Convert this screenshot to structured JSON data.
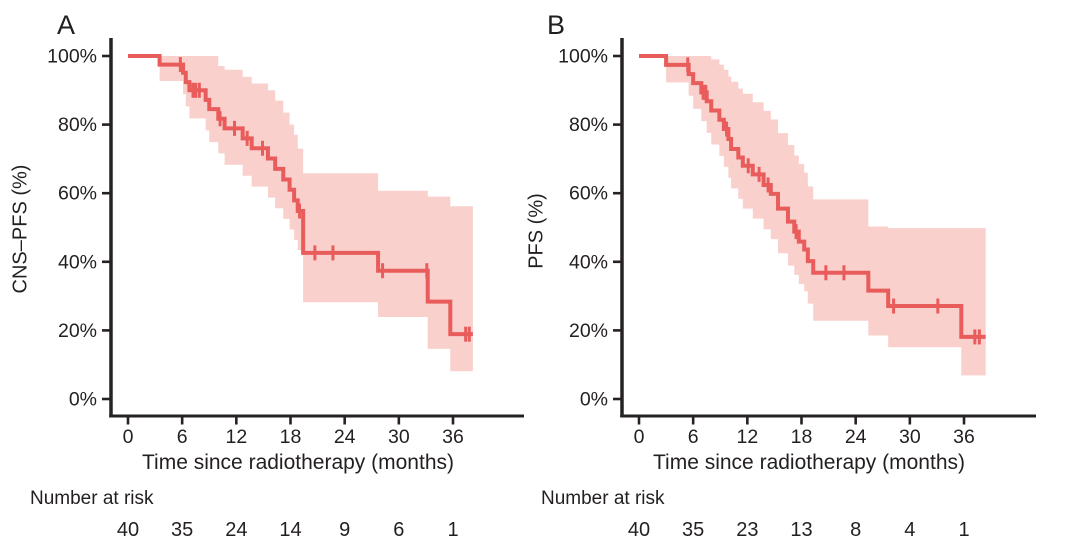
{
  "colors": {
    "line": "#e95c5c",
    "band": "#f9d0cb",
    "axis": "#262223",
    "text": "#231f20",
    "background": "#ffffff"
  },
  "chart_data": [
    {
      "type": "line",
      "subtype": "kaplan-meier-step-with-confidence-band",
      "title": "A",
      "ylabel": "CNS–PFS (%)",
      "xlabel": "Time since radiotherapy (months)",
      "xlim": [
        0,
        38.2
      ],
      "ylim": [
        0,
        100
      ],
      "grid": "off",
      "legend": "none",
      "x_ticks": [
        0,
        6,
        12,
        18,
        24,
        30,
        36
      ],
      "y_ticks": [
        {
          "pct": 100,
          "label": "100%"
        },
        {
          "pct": 80,
          "label": "80%"
        },
        {
          "pct": 60,
          "label": "60%"
        },
        {
          "pct": 40,
          "label": "40%"
        },
        {
          "pct": 20,
          "label": "20%"
        },
        {
          "pct": 0,
          "label": "0%"
        }
      ],
      "line_color": "#e95c5c",
      "band_color": "#f9d0cb",
      "steps_format": [
        "time_months",
        "survival_pct",
        "ci_upper_pct",
        "ci_lower_pct"
      ],
      "steps": [
        [
          0,
          100,
          100,
          100
        ],
        [
          3.5,
          97.5,
          100,
          92.7
        ],
        [
          6.1,
          95.1,
          100,
          88.9
        ],
        [
          6.4,
          92.4,
          100,
          85.3
        ],
        [
          6.8,
          90.0,
          100,
          81.8
        ],
        [
          8.6,
          87.2,
          100,
          78.3
        ],
        [
          9.0,
          84.5,
          100,
          74.9
        ],
        [
          10.0,
          81.7,
          97.1,
          71.6
        ],
        [
          10.7,
          78.9,
          96.0,
          68.3
        ],
        [
          12.7,
          76.0,
          93.9,
          65.1
        ],
        [
          13.7,
          73.1,
          92.0,
          61.9
        ],
        [
          15.5,
          70.1,
          90.0,
          58.7
        ],
        [
          16.3,
          67.1,
          87.0,
          55.6
        ],
        [
          17.2,
          64.0,
          83.5,
          52.5
        ],
        [
          17.9,
          61.0,
          80.0,
          49.4
        ],
        [
          18.4,
          57.9,
          77.0,
          46.4
        ],
        [
          18.8,
          54.8,
          73.0,
          43.4
        ],
        [
          19.4,
          42.6,
          65.8,
          28.2
        ],
        [
          27.7,
          37.4,
          60.7,
          23.9
        ],
        [
          33.2,
          28.4,
          59.0,
          14.6
        ],
        [
          35.7,
          18.9,
          56.2,
          8.1
        ]
      ],
      "end_time": 38.2,
      "censors_format": [
        "time_months",
        "survival_pct"
      ],
      "censors": [
        [
          5.8,
          97.5
        ],
        [
          7.2,
          90.0
        ],
        [
          7.5,
          90.0
        ],
        [
          7.9,
          90.0
        ],
        [
          10.2,
          81.7
        ],
        [
          11.8,
          78.9
        ],
        [
          13.2,
          76.0
        ],
        [
          14.9,
          73.1
        ],
        [
          19.0,
          54.8
        ],
        [
          20.7,
          42.6
        ],
        [
          22.7,
          42.6
        ],
        [
          28.2,
          37.4
        ],
        [
          33.1,
          37.4
        ],
        [
          37.4,
          18.9
        ],
        [
          37.8,
          18.9
        ]
      ],
      "risk_table": {
        "label": "Number at risk",
        "times": [
          0,
          6,
          12,
          18,
          24,
          30,
          36
        ],
        "counts": [
          40,
          35,
          24,
          14,
          9,
          6,
          1
        ]
      }
    },
    {
      "type": "line",
      "subtype": "kaplan-meier-step-with-confidence-band",
      "title": "B",
      "ylabel": "PFS (%)",
      "xlabel": "Time since radiotherapy (months)",
      "xlim": [
        0,
        38.4
      ],
      "ylim": [
        0,
        100
      ],
      "grid": "off",
      "legend": "none",
      "x_ticks": [
        0,
        6,
        12,
        18,
        24,
        30,
        36
      ],
      "y_ticks": [
        {
          "pct": 100,
          "label": "100%"
        },
        {
          "pct": 80,
          "label": "80%"
        },
        {
          "pct": 60,
          "label": "60%"
        },
        {
          "pct": 40,
          "label": "40%"
        },
        {
          "pct": 20,
          "label": "20%"
        },
        {
          "pct": 0,
          "label": "0%"
        }
      ],
      "line_color": "#e95c5c",
      "band_color": "#f9d0cb",
      "steps_format": [
        "time_months",
        "survival_pct",
        "ci_upper_pct",
        "ci_lower_pct"
      ],
      "steps": [
        [
          0,
          100,
          100,
          100
        ],
        [
          3.0,
          97.4,
          100,
          92.3
        ],
        [
          5.5,
          94.7,
          100,
          88.4
        ],
        [
          6.0,
          92.1,
          100,
          84.6
        ],
        [
          6.9,
          89.4,
          100,
          81.0
        ],
        [
          7.5,
          86.8,
          100,
          77.6
        ],
        [
          8.0,
          84.1,
          99.0,
          74.2
        ],
        [
          8.9,
          81.4,
          97.5,
          70.9
        ],
        [
          9.4,
          78.7,
          96.0,
          67.7
        ],
        [
          9.9,
          75.8,
          94.0,
          64.5
        ],
        [
          10.2,
          72.9,
          92.5,
          61.4
        ],
        [
          11.0,
          70.4,
          90.5,
          58.4
        ],
        [
          11.5,
          68.0,
          89.0,
          55.5
        ],
        [
          12.6,
          65.5,
          86.5,
          52.6
        ],
        [
          13.8,
          62.4,
          84.0,
          49.5
        ],
        [
          14.6,
          59.8,
          81.5,
          46.6
        ],
        [
          15.4,
          55.5,
          77.5,
          42.5
        ],
        [
          16.5,
          51.7,
          74.0,
          38.9
        ],
        [
          17.2,
          48.8,
          71.0,
          36.2
        ],
        [
          17.7,
          45.9,
          68.5,
          33.5
        ],
        [
          18.3,
          43.6,
          66.0,
          31.4
        ],
        [
          18.7,
          40.2,
          62.0,
          27.8
        ],
        [
          19.3,
          36.8,
          58.2,
          22.8
        ],
        [
          25.4,
          31.6,
          50.3,
          18.5
        ],
        [
          27.6,
          27.1,
          49.8,
          15.1
        ],
        [
          35.7,
          18.1,
          49.8,
          6.9
        ]
      ],
      "end_time": 38.4,
      "censors_format": [
        "time_months",
        "survival_pct"
      ],
      "censors": [
        [
          5.4,
          97.4
        ],
        [
          7.1,
          89.4
        ],
        [
          7.4,
          89.4
        ],
        [
          9.7,
          78.7
        ],
        [
          12.1,
          68.0
        ],
        [
          13.3,
          65.5
        ],
        [
          14.3,
          62.4
        ],
        [
          17.4,
          48.8
        ],
        [
          20.7,
          36.8
        ],
        [
          22.7,
          36.8
        ],
        [
          28.2,
          27.1
        ],
        [
          33.1,
          27.1
        ],
        [
          37.2,
          18.1
        ],
        [
          37.7,
          18.1
        ]
      ],
      "risk_table": {
        "label": "Number at risk",
        "times": [
          0,
          6,
          12,
          18,
          24,
          30,
          36
        ],
        "counts": [
          40,
          35,
          23,
          13,
          8,
          4,
          1
        ]
      }
    }
  ]
}
